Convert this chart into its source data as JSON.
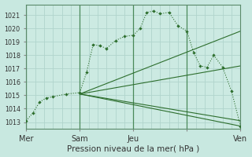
{
  "title": "Pression niveau de la mer( hPa )",
  "bg_color": "#c8e8e0",
  "plot_bg_color": "#cceae2",
  "grid_color": "#b0d4cc",
  "line_color": "#2d6e2d",
  "vline_color": "#4a8a5a",
  "ylim": [
    1012.5,
    1021.8
  ],
  "xlim": [
    0,
    96
  ],
  "yticks": [
    1013,
    1014,
    1015,
    1016,
    1017,
    1018,
    1019,
    1020,
    1021
  ],
  "xtick_positions": [
    0,
    24,
    48,
    72,
    96
  ],
  "xtick_labels": [
    "Mer",
    "Sam",
    "Jeu",
    "",
    "Ven"
  ],
  "day_vlines": [
    0,
    24,
    48,
    72
  ],
  "main_line": {
    "x": [
      0,
      3,
      6,
      9,
      12,
      18,
      24,
      27,
      30,
      33,
      36,
      40,
      44,
      48,
      51,
      54,
      57,
      60,
      64,
      68,
      72,
      75,
      78,
      81,
      84,
      88,
      92,
      96
    ],
    "y": [
      1013.1,
      1013.7,
      1014.5,
      1014.8,
      1014.9,
      1015.1,
      1015.2,
      1016.7,
      1018.8,
      1018.7,
      1018.5,
      1019.1,
      1019.4,
      1019.5,
      1020.0,
      1021.2,
      1021.3,
      1021.1,
      1021.2,
      1020.2,
      1019.8,
      1018.2,
      1017.2,
      1017.1,
      1018.0,
      1017.1,
      1015.3,
      1012.7
    ]
  },
  "fan_lines": [
    {
      "x": [
        24,
        96
      ],
      "y": [
        1015.1,
        1019.8
      ]
    },
    {
      "x": [
        24,
        96
      ],
      "y": [
        1015.1,
        1017.2
      ]
    },
    {
      "x": [
        24,
        96
      ],
      "y": [
        1015.1,
        1013.1
      ]
    },
    {
      "x": [
        24,
        96
      ],
      "y": [
        1015.1,
        1012.7
      ]
    }
  ]
}
